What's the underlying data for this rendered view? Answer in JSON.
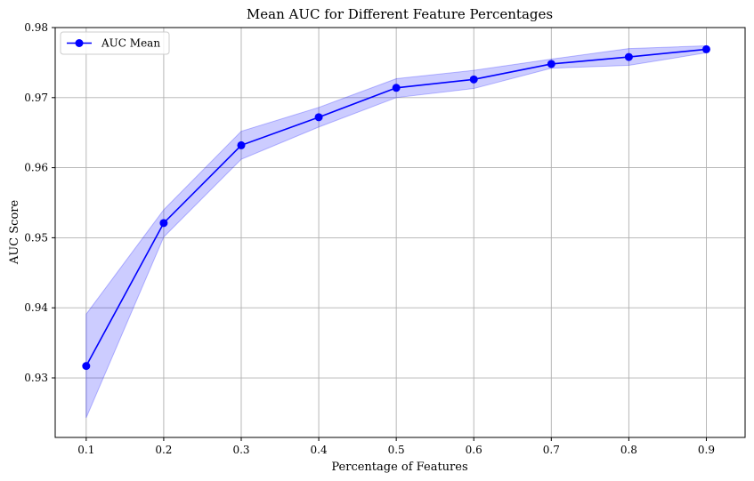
{
  "chart_data": {
    "type": "line",
    "title": "Mean AUC for Different Feature Percentages",
    "xlabel": "Percentage of Features",
    "ylabel": "AUC Score",
    "x": [
      0.1,
      0.2,
      0.3,
      0.4,
      0.5,
      0.6,
      0.7,
      0.8,
      0.9
    ],
    "series": [
      {
        "name": "AUC Mean",
        "values": [
          0.9317,
          0.9521,
          0.9632,
          0.9672,
          0.9714,
          0.9726,
          0.9748,
          0.9758,
          0.9769
        ],
        "lower": [
          0.9243,
          0.9501,
          0.9612,
          0.9658,
          0.97,
          0.9713,
          0.9742,
          0.9746,
          0.9764
        ],
        "upper": [
          0.9391,
          0.954,
          0.9652,
          0.9686,
          0.9727,
          0.9739,
          0.9755,
          0.977,
          0.9774
        ],
        "color": "#0000ff",
        "band_color": "#0000ff"
      }
    ],
    "xlim": [
      0.06,
      0.95
    ],
    "ylim": [
      0.9215,
      0.98
    ],
    "xticks": [
      "0.1",
      "0.2",
      "0.3",
      "0.4",
      "0.5",
      "0.6",
      "0.7",
      "0.8",
      "0.9"
    ],
    "yticks": [
      "0.93",
      "0.94",
      "0.95",
      "0.96",
      "0.97",
      "0.98"
    ],
    "grid": true,
    "legend_position": "upper-left"
  }
}
